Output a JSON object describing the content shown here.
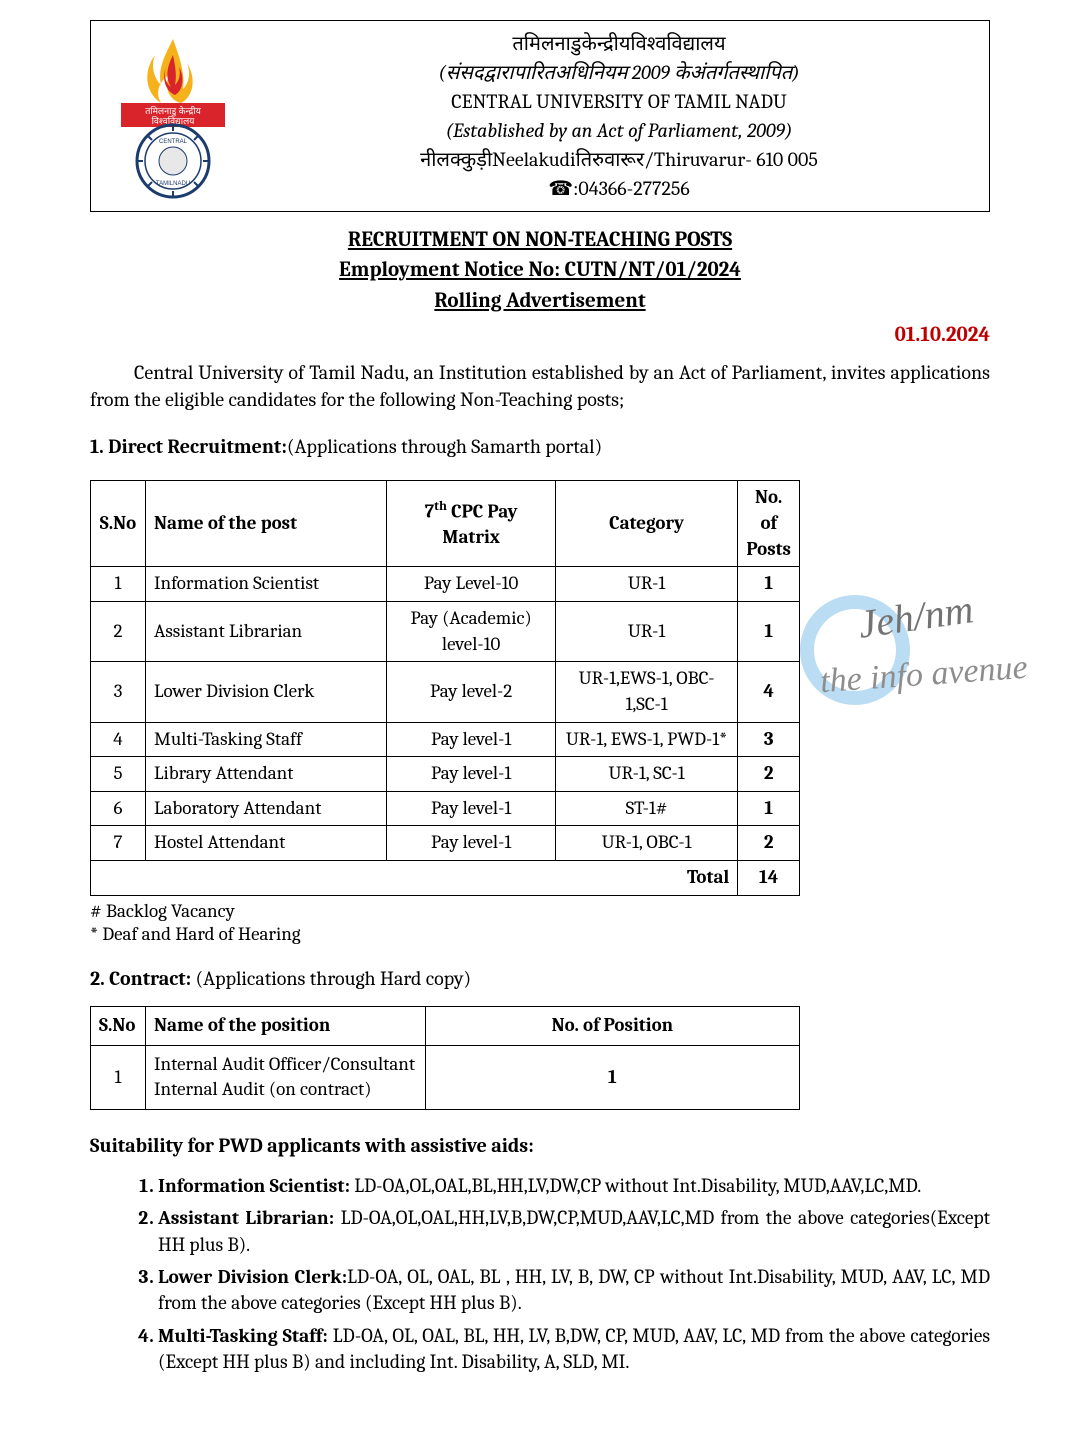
{
  "colors": {
    "text": "#000000",
    "date": "#c00000",
    "watermark_ring": "#6db6e6",
    "watermark_text": "#5a5a5a",
    "watermark_text2": "#7a7a7a",
    "logo_flame_outer": "#f5b21a",
    "logo_flame_inner": "#d9242b",
    "logo_ring": "#1c3c6e",
    "logo_banner": "#d9242b"
  },
  "header": {
    "line1_hi": "तमिलनाडुकेन्द्रीयविश्वविद्यालय",
    "line2_hi_italic": "(संसदद्वारापारितअधिनियम 2009 केअंतर्गतस्थापित)",
    "line3_en": "CENTRAL UNIVERSITY OF TAMIL NADU",
    "line4_en_italic": "(Established by an Act of Parliament, 2009)",
    "line5_mix": "नीलक्कुड़ीNeelakudiतिरुवारूर/Thiruvarur- 610 005",
    "phone_icon": "☎",
    "phone": ":04366-277256"
  },
  "titles": {
    "t1": "RECRUITMENT ON NON-TEACHING POSTS",
    "t2": "Employment Notice No: CUTN/NT/01/2024",
    "t3": "Rolling Advertisement"
  },
  "date": "01.10.2024",
  "intro": "Central University of Tamil Nadu, an Institution established by an Act of Parliament, invites applications from the eligible candidates for the following Non-Teaching posts;",
  "sec1": {
    "head_bold": "1. Direct Recruitment:",
    "head_rest": "(Applications through Samarth portal)"
  },
  "table1": {
    "columns": {
      "sno": "S.No",
      "name": "Name of the post",
      "pay_pre": "7",
      "pay_sup": "th",
      "pay_post": " CPC Pay Matrix",
      "cat": "Category",
      "posts": "No. of Posts"
    },
    "rows": [
      {
        "sno": "1",
        "name": "Information Scientist",
        "pay": "Pay Level-10",
        "cat": "UR-1",
        "posts": "1"
      },
      {
        "sno": "2",
        "name": "Assistant Librarian",
        "pay": "Pay (Academic) level-10",
        "cat": "UR-1",
        "posts": "1"
      },
      {
        "sno": "3",
        "name": "Lower Division Clerk",
        "pay": "Pay level-2",
        "cat": "UR-1,EWS-1, OBC-1,SC-1",
        "posts": "4"
      },
      {
        "sno": "4",
        "name": "Multi-Tasking Staff",
        "pay": "Pay level-1",
        "cat": "UR-1, EWS-1, PWD-1*",
        "posts": "3"
      },
      {
        "sno": "5",
        "name": "Library Attendant",
        "pay": "Pay level-1",
        "cat": "UR-1, SC-1",
        "posts": "2"
      },
      {
        "sno": "6",
        "name": "Laboratory Attendant",
        "pay": "Pay level-1",
        "cat": "ST-1#",
        "posts": "1"
      },
      {
        "sno": "7",
        "name": "Hostel Attendant",
        "pay": "Pay level-1",
        "cat": "UR-1, OBC-1",
        "posts": "2"
      }
    ],
    "total_label": "Total",
    "total_value": "14"
  },
  "footnotes": {
    "f1": "# Backlog Vacancy",
    "f2": "* Deaf and Hard of Hearing"
  },
  "sec2": {
    "head_bold": "2. Contract: ",
    "head_rest": "(Applications through Hard copy)"
  },
  "table2": {
    "columns": {
      "sno": "S.No",
      "name": "Name of the position",
      "num": "No. of Position"
    },
    "rows": [
      {
        "sno": "1",
        "name": "Internal Audit Officer/Consultant Internal Audit (on contract)",
        "num": "1"
      }
    ]
  },
  "suitability": {
    "head": "Suitability for PWD applicants with assistive aids:",
    "items": [
      {
        "title": "Information Scientist: ",
        "body": "LD-OA,OL,OAL,BL,HH,LV,DW,CP without Int.Disability, MUD,AAV,LC,MD."
      },
      {
        "title": "Assistant Librarian: ",
        "body": "LD-OA,OL,OAL,HH,LV,B,DW,CP,MUD,AAV,LC,MD  from the above categories(Except HH plus B)."
      },
      {
        "title": "Lower Division Clerk:",
        "body": "LD-OA, OL, OAL, BL , HH, LV, B, DW, CP without Int.Disability, MUD, AAV, LC, MD from the above categories (Except  HH plus B)."
      },
      {
        "title": "Multi-Tasking Staff: ",
        "body": "LD-OA, OL, OAL, BL, HH, LV, B,DW, CP, MUD, AAV, LC, MD from the above categories (Except  HH plus B) and including Int. Disability, A, SLD, MI."
      }
    ]
  },
  "watermark": {
    "line1": "Jeh/nm",
    "line2": "the info avenue"
  }
}
